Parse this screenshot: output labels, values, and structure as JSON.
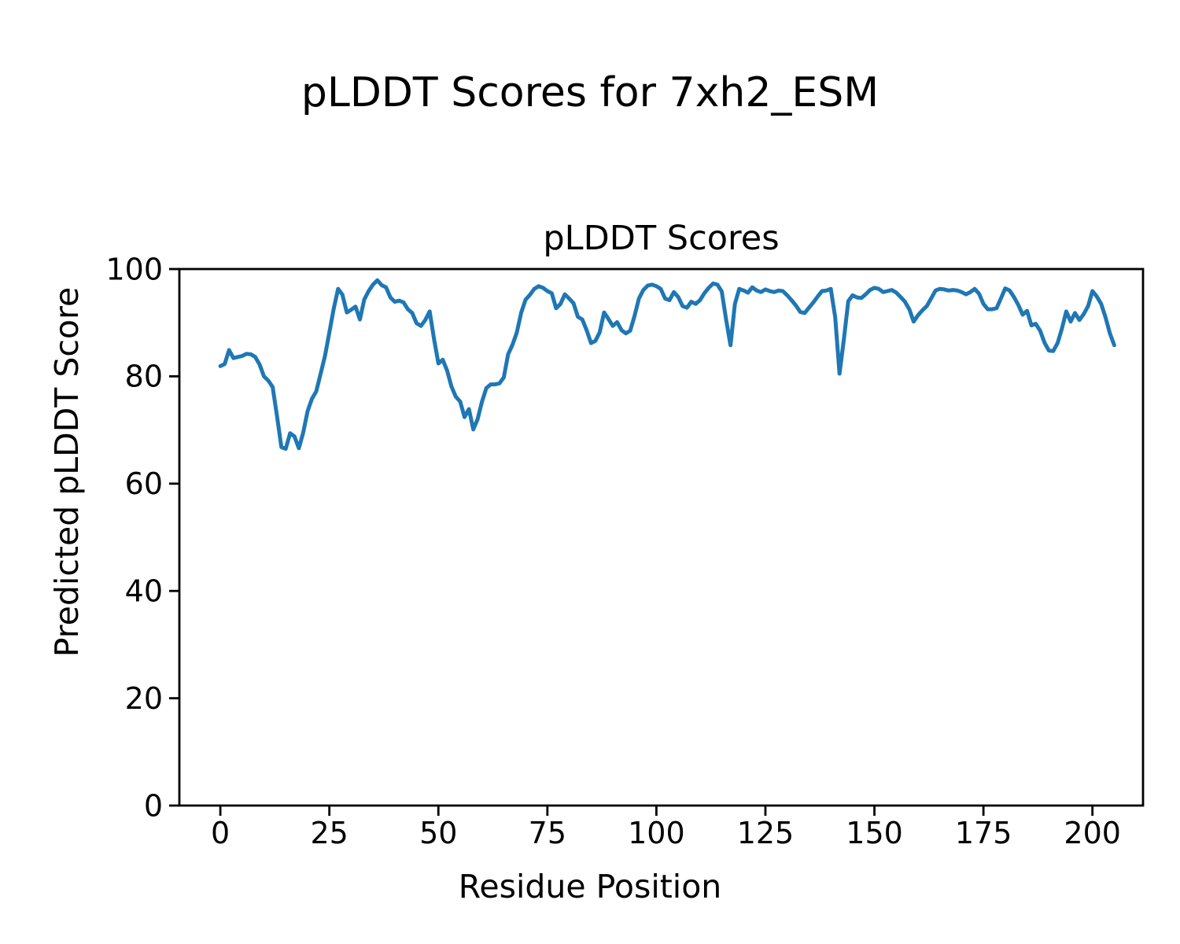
{
  "figure": {
    "suptitle": "pLDDT Scores for 7xh2_ESM",
    "background_color": "#ffffff",
    "text_color": "#000000"
  },
  "chart_data": {
    "type": "line",
    "title": "pLDDT Scores",
    "xlabel": "Residue Position",
    "ylabel": "Predicted pLDDT Score",
    "legend": "none",
    "grid": false,
    "line_color": "#1f77b4",
    "line_width": 5,
    "spine_color": "#000000",
    "xlim": [
      -9.4,
      211.6
    ],
    "ylim": [
      0,
      100
    ],
    "xticks": [
      0,
      25,
      50,
      75,
      100,
      125,
      150,
      175,
      200
    ],
    "yticks": [
      0,
      20,
      40,
      60,
      80,
      100
    ],
    "x_start": 0,
    "x_step": 1,
    "values": [
      81.9,
      82.3,
      84.9,
      83.4,
      83.6,
      83.8,
      84.2,
      84.1,
      83.6,
      82.2,
      80.0,
      79.2,
      78.0,
      72.5,
      66.8,
      66.5,
      69.4,
      68.8,
      66.6,
      69.5,
      73.5,
      75.8,
      77.2,
      80.5,
      83.8,
      88.2,
      92.6,
      96.3,
      95.2,
      91.9,
      92.4,
      93.0,
      90.6,
      94.3,
      95.9,
      97.1,
      97.9,
      97.0,
      96.6,
      94.7,
      93.9,
      94.1,
      93.8,
      92.5,
      91.8,
      89.9,
      89.4,
      90.5,
      92.1,
      87.0,
      82.4,
      83.1,
      81.1,
      78.1,
      76.2,
      75.3,
      72.4,
      73.9,
      70.1,
      72.0,
      75.3,
      77.8,
      78.5,
      78.5,
      78.7,
      79.8,
      84.1,
      85.9,
      88.2,
      91.9,
      94.3,
      95.2,
      96.3,
      96.8,
      96.5,
      95.9,
      95.5,
      92.7,
      93.5,
      95.3,
      94.5,
      93.6,
      91.1,
      90.6,
      88.6,
      86.2,
      86.6,
      88.2,
      91.9,
      90.7,
      89.4,
      90.1,
      88.6,
      88.0,
      88.5,
      91.3,
      94.5,
      96.1,
      96.9,
      97.1,
      96.8,
      96.3,
      94.5,
      94.2,
      95.7,
      94.8,
      93.1,
      92.8,
      93.9,
      93.5,
      94.2,
      95.5,
      96.5,
      97.3,
      97.1,
      95.8,
      90.5,
      85.8,
      93.5,
      96.3,
      96.0,
      95.6,
      96.6,
      96.0,
      95.7,
      96.2,
      95.9,
      95.7,
      96.0,
      95.9,
      95.1,
      94.2,
      93.2,
      92.0,
      91.8,
      92.8,
      93.8,
      94.9,
      95.9,
      96.0,
      96.3,
      91.0,
      80.5,
      87.0,
      94.0,
      95.1,
      94.7,
      94.6,
      95.3,
      96.1,
      96.5,
      96.3,
      95.7,
      95.9,
      96.1,
      95.6,
      94.8,
      93.9,
      92.5,
      90.2,
      91.4,
      92.3,
      93.1,
      94.5,
      96.0,
      96.3,
      96.2,
      96.0,
      96.1,
      96.0,
      95.7,
      95.3,
      95.7,
      96.3,
      95.4,
      93.5,
      92.5,
      92.5,
      92.7,
      94.5,
      96.4,
      96.0,
      94.8,
      93.3,
      91.5,
      92.2,
      89.5,
      89.8,
      88.5,
      86.3,
      84.8,
      84.7,
      86.2,
      88.9,
      92.1,
      90.2,
      91.8,
      90.5,
      91.6,
      93.1,
      95.9,
      94.9,
      93.5,
      91.0,
      88.0,
      85.8
    ]
  }
}
